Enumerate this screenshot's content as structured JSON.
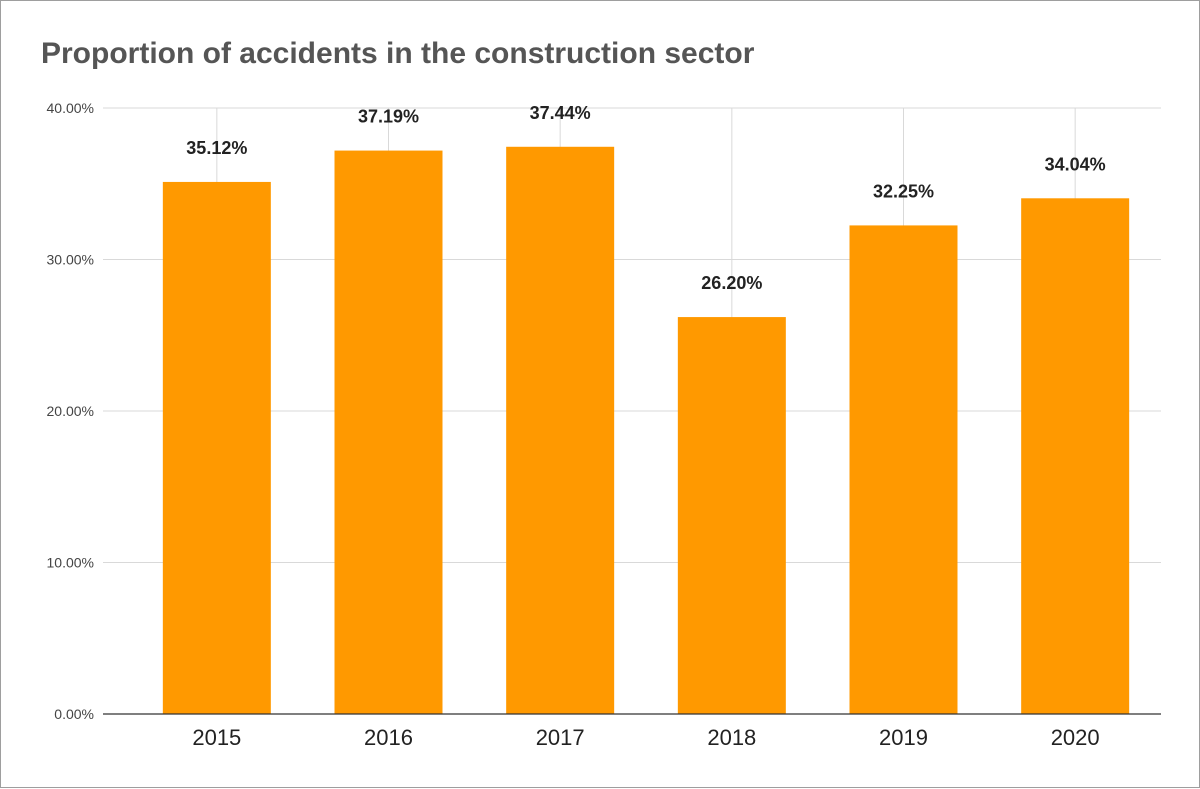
{
  "chart_data": {
    "type": "bar",
    "title": "Proportion of accidents in the construction sector",
    "xlabel": "",
    "ylabel": "",
    "categories": [
      "2015",
      "2016",
      "2017",
      "2018",
      "2019",
      "2020"
    ],
    "values": [
      35.12,
      37.19,
      37.44,
      26.2,
      32.25,
      34.04
    ],
    "data_labels": [
      "35.12%",
      "37.19%",
      "37.44%",
      "26.20%",
      "32.25%",
      "34.04%"
    ],
    "ylim": [
      0,
      40
    ],
    "yticks": [
      0,
      10,
      20,
      30,
      40
    ],
    "ytick_labels": [
      "0.00%",
      "10.00%",
      "20.00%",
      "30.00%",
      "40.00%"
    ],
    "grid": true,
    "legend": "none",
    "bar_color": "#ff9900"
  }
}
